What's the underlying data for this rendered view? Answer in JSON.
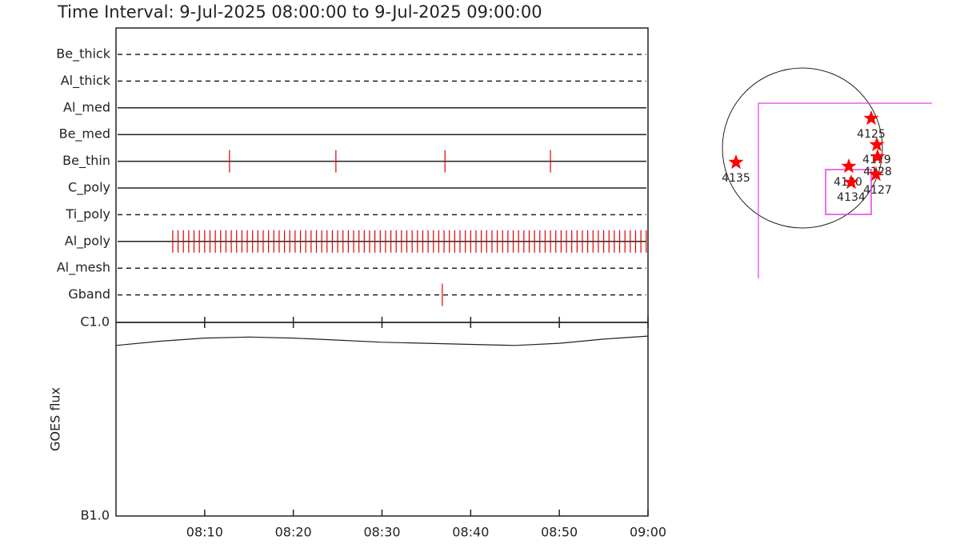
{
  "chart_data": [
    {
      "type": "timeline",
      "title": "Time Interval:  9-Jul-2025 08:00:00 to  9-Jul-2025 09:00:00",
      "categories": [
        "Be_thick",
        "Al_thick",
        "Al_med",
        "Be_med",
        "Be_thin",
        "C_poly",
        "Ti_poly",
        "Al_poly",
        "Al_mesh",
        "Gband"
      ],
      "dashed": [
        true,
        true,
        false,
        false,
        false,
        false,
        true,
        false,
        true,
        true
      ],
      "color": "#e00000",
      "xlim": [
        0,
        60
      ],
      "events": [
        [],
        [],
        [],
        [],
        [
          12.8,
          24.8,
          37.1,
          49.0
        ],
        [],
        [],
        [
          6.4,
          7.0,
          7.6,
          8.2,
          8.8,
          9.4,
          10.0,
          10.6,
          11.2,
          11.8,
          12.4,
          13.0,
          13.6,
          14.2,
          14.8,
          15.4,
          16.0,
          16.6,
          17.2,
          17.8,
          18.4,
          19.0,
          19.6,
          20.2,
          20.8,
          21.4,
          22.0,
          22.6,
          23.2,
          23.8,
          24.4,
          25.0,
          25.6,
          26.2,
          26.8,
          27.4,
          28.0,
          28.6,
          29.2,
          29.8,
          30.4,
          31.0,
          31.6,
          32.2,
          32.8,
          33.4,
          34.0,
          34.6,
          35.2,
          35.8,
          36.4,
          37.0,
          37.6,
          38.2,
          38.8,
          39.4,
          40.0,
          40.6,
          41.2,
          41.8,
          42.4,
          43.0,
          43.6,
          44.2,
          44.8,
          45.4,
          46.0,
          46.6,
          47.2,
          47.8,
          48.4,
          49.0,
          49.6,
          50.2,
          50.8,
          51.4,
          52.0,
          52.6,
          53.2,
          53.8,
          54.4,
          55.0,
          55.6,
          56.2,
          56.8,
          57.4,
          58.0,
          58.6,
          59.2,
          59.8
        ],
        [],
        [
          36.8
        ]
      ]
    },
    {
      "type": "line",
      "ylabel": "GOES flux",
      "x": [
        0,
        5,
        10,
        15,
        20,
        25,
        30,
        35,
        40,
        45,
        50,
        55,
        60
      ],
      "values": [
        7.6e-07,
        8e-07,
        8.3e-07,
        8.4e-07,
        8.3e-07,
        8.1e-07,
        7.9e-07,
        7.8e-07,
        7.7e-07,
        7.6e-07,
        7.8e-07,
        8.2e-07,
        8.5e-07
      ],
      "color": "#222222",
      "log_scale": true,
      "ylim": [
        1e-07,
        1e-06
      ],
      "yticks": [
        {
          "value": 1e-07,
          "label": "B1.0"
        },
        {
          "value": 1e-06,
          "label": "C1.0"
        }
      ],
      "xlim": [
        0,
        60
      ],
      "xticks": [
        {
          "value": 10,
          "label": "08:10"
        },
        {
          "value": 20,
          "label": "08:20"
        },
        {
          "value": 30,
          "label": "08:30"
        },
        {
          "value": 40,
          "label": "08:40"
        },
        {
          "value": 50,
          "label": "08:50"
        },
        {
          "value": 60,
          "label": "09:00"
        }
      ]
    },
    {
      "type": "map",
      "labels": [
        "4135",
        "4125",
        "4179",
        "4128",
        "4130",
        "4134",
        "4127"
      ],
      "color": "#ff0000"
    }
  ]
}
